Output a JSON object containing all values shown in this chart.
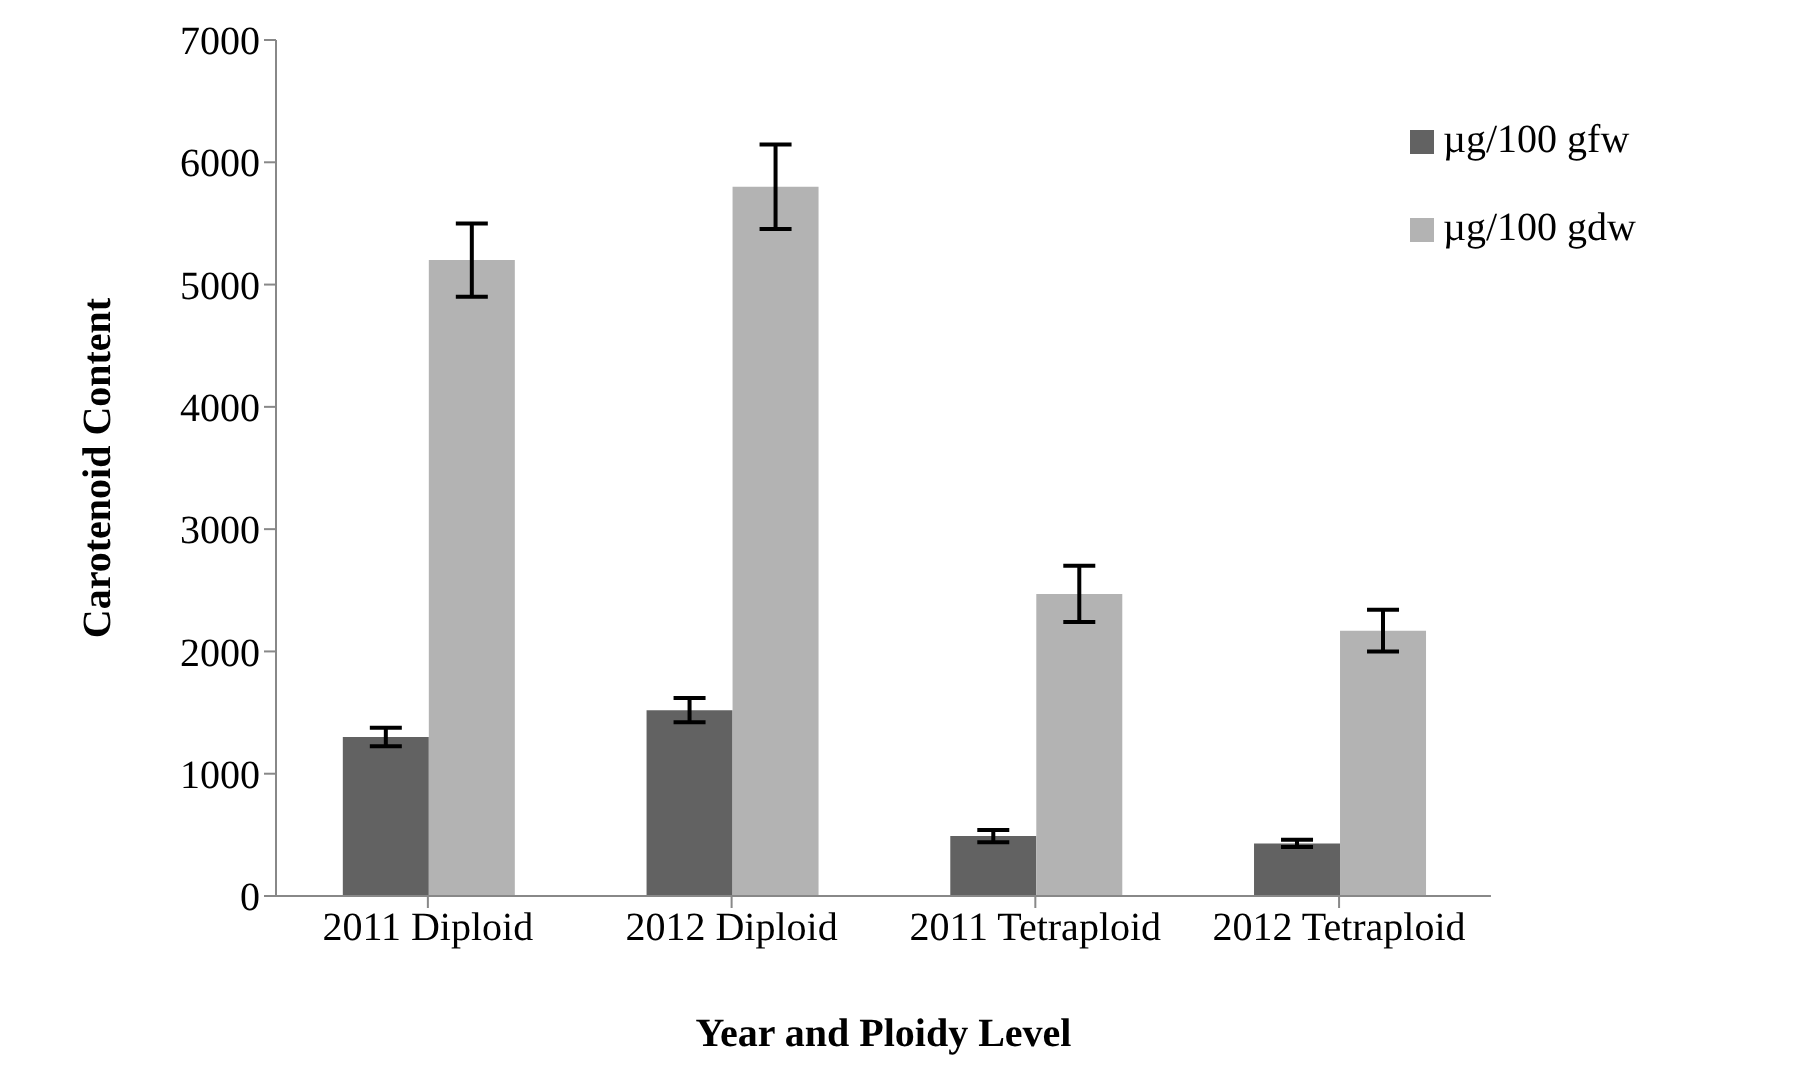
{
  "chart_data": {
    "type": "bar",
    "xlabel": "Year and Ploidy Level",
    "ylabel": "Carotenoid Content",
    "categories": [
      "2011 Diploid",
      "2012 Diploid",
      "2011 Tetraploid",
      "2012 Tetraploid"
    ],
    "series": [
      {
        "name": "µg/100 gfw",
        "color": "#626262",
        "values": [
          1300,
          1520,
          490,
          430
        ],
        "errors": [
          75,
          100,
          50,
          30
        ]
      },
      {
        "name": "µg/100 gdw",
        "color": "#b3b3b3",
        "values": [
          5200,
          5800,
          2470,
          2170
        ],
        "errors": [
          300,
          345,
          230,
          170
        ]
      }
    ],
    "ylim": [
      0,
      7000
    ],
    "yticks": [
      0,
      1000,
      2000,
      3000,
      4000,
      5000,
      6000,
      7000
    ],
    "grid": false,
    "legend": "top right"
  }
}
